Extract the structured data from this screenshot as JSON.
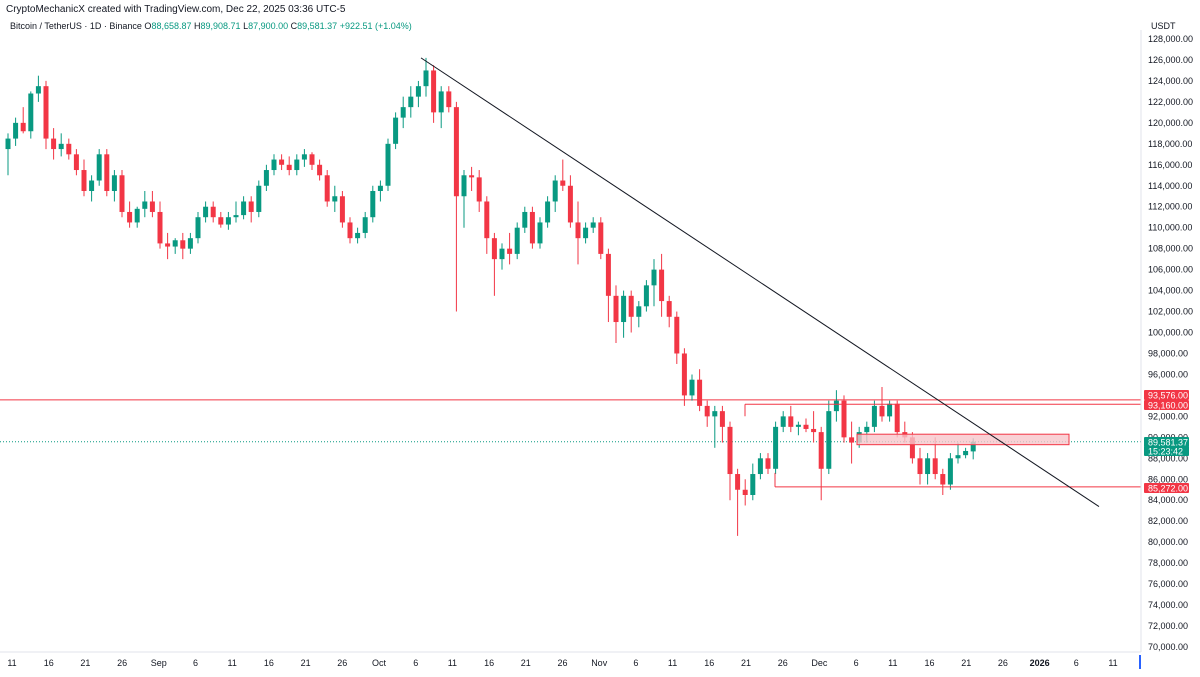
{
  "header": {
    "attribution": "CryptoMechanicX created with TradingView.com, Dec 22, 2025 03:36 UTC-5"
  },
  "symbol": {
    "name": "Bitcoin / TetherUS · 1D · Binance",
    "open_label": "O",
    "open": "88,658.87",
    "high_label": "H",
    "high": "89,908.71",
    "low_label": "L",
    "low": "87,900.00",
    "close_label": "C",
    "close": "89,581.37",
    "change": "+922.51 (+1.04%)"
  },
  "currency": "USDT",
  "colors": {
    "up": "#089981",
    "down": "#f23645",
    "trendline": "#131722",
    "zone_fill": "#f7c6cb",
    "current_price_line": "#089981"
  },
  "price_tags": [
    {
      "value": "93,576.00",
      "price": 93576,
      "color": "#f23645"
    },
    {
      "value": "93,160.00",
      "price": 93160,
      "color": "#f23645"
    },
    {
      "value": "89,581.37",
      "price": 89581.37,
      "color": "#089981"
    },
    {
      "value": "15:23:42",
      "price": 88400,
      "color": "#089981"
    },
    {
      "value": "85,272.00",
      "price": 85272,
      "color": "#f23645"
    }
  ],
  "chart_data": {
    "type": "candlestick",
    "y_axis": {
      "ticks": [
        "128,000.00",
        "126,000.00",
        "124,000.00",
        "122,000.00",
        "120,000.00",
        "118,000.00",
        "116,000.00",
        "114,000.00",
        "112,000.00",
        "110,000.00",
        "108,000.00",
        "106,000.00",
        "104,000.00",
        "102,000.00",
        "100,000.00",
        "98,000.00",
        "96,000.00",
        "94,000.00",
        "92,000.00",
        "90,000.00",
        "88,000.00",
        "86,000.00",
        "84,000.00",
        "82,000.00",
        "80,000.00",
        "78,000.00",
        "76,000.00",
        "74,000.00",
        "72,000.00",
        "70,000.00"
      ],
      "range": [
        69000,
        129000
      ]
    },
    "x_axis": {
      "ticks": [
        "11",
        "16",
        "21",
        "26",
        "Sep",
        "6",
        "11",
        "16",
        "21",
        "26",
        "Oct",
        "6",
        "11",
        "16",
        "21",
        "26",
        "Nov",
        "6",
        "11",
        "16",
        "21",
        "26",
        "Dec",
        "6",
        "11",
        "16",
        "21",
        "26",
        "2026",
        "6",
        "11"
      ],
      "bold_tick": "2026"
    },
    "candles": [
      {
        "o": 117500,
        "h": 119000,
        "l": 115000,
        "c": 118500
      },
      {
        "o": 118500,
        "h": 120500,
        "l": 117800,
        "c": 120000
      },
      {
        "o": 120000,
        "h": 121500,
        "l": 119000,
        "c": 119200
      },
      {
        "o": 119200,
        "h": 123000,
        "l": 118500,
        "c": 122800
      },
      {
        "o": 122800,
        "h": 124500,
        "l": 122000,
        "c": 123500
      },
      {
        "o": 123500,
        "h": 124000,
        "l": 117500,
        "c": 118500
      },
      {
        "o": 118500,
        "h": 119500,
        "l": 116500,
        "c": 117500
      },
      {
        "o": 117500,
        "h": 119000,
        "l": 116800,
        "c": 118000
      },
      {
        "o": 118000,
        "h": 118500,
        "l": 116500,
        "c": 117000
      },
      {
        "o": 117000,
        "h": 117500,
        "l": 115000,
        "c": 115500
      },
      {
        "o": 115500,
        "h": 116500,
        "l": 113000,
        "c": 113500
      },
      {
        "o": 113500,
        "h": 115000,
        "l": 112500,
        "c": 114500
      },
      {
        "o": 114500,
        "h": 117500,
        "l": 114000,
        "c": 117000
      },
      {
        "o": 117000,
        "h": 117500,
        "l": 113000,
        "c": 113500
      },
      {
        "o": 113500,
        "h": 115500,
        "l": 112500,
        "c": 115000
      },
      {
        "o": 115000,
        "h": 115500,
        "l": 111000,
        "c": 111500
      },
      {
        "o": 111500,
        "h": 112500,
        "l": 110000,
        "c": 110500
      },
      {
        "o": 110500,
        "h": 112000,
        "l": 110000,
        "c": 111800
      },
      {
        "o": 111800,
        "h": 113500,
        "l": 111000,
        "c": 112500
      },
      {
        "o": 112500,
        "h": 113500,
        "l": 111000,
        "c": 111500
      },
      {
        "o": 111500,
        "h": 112500,
        "l": 108000,
        "c": 108500
      },
      {
        "o": 108500,
        "h": 109500,
        "l": 107000,
        "c": 108200
      },
      {
        "o": 108200,
        "h": 109000,
        "l": 107500,
        "c": 108800
      },
      {
        "o": 108800,
        "h": 109500,
        "l": 107000,
        "c": 108000
      },
      {
        "o": 108000,
        "h": 109500,
        "l": 107500,
        "c": 109000
      },
      {
        "o": 109000,
        "h": 111500,
        "l": 108500,
        "c": 111000
      },
      {
        "o": 111000,
        "h": 112500,
        "l": 110500,
        "c": 112000
      },
      {
        "o": 112000,
        "h": 112500,
        "l": 110500,
        "c": 111000
      },
      {
        "o": 111000,
        "h": 111500,
        "l": 110000,
        "c": 110300
      },
      {
        "o": 110300,
        "h": 111500,
        "l": 109800,
        "c": 111000
      },
      {
        "o": 111000,
        "h": 112500,
        "l": 110500,
        "c": 111200
      },
      {
        "o": 111200,
        "h": 113000,
        "l": 110800,
        "c": 112500
      },
      {
        "o": 112500,
        "h": 113000,
        "l": 110500,
        "c": 111500
      },
      {
        "o": 111500,
        "h": 114500,
        "l": 111000,
        "c": 114000
      },
      {
        "o": 114000,
        "h": 116000,
        "l": 113500,
        "c": 115500
      },
      {
        "o": 115500,
        "h": 117000,
        "l": 115000,
        "c": 116500
      },
      {
        "o": 116500,
        "h": 117000,
        "l": 115500,
        "c": 116000
      },
      {
        "o": 116000,
        "h": 116800,
        "l": 115000,
        "c": 115500
      },
      {
        "o": 115500,
        "h": 117000,
        "l": 115000,
        "c": 116500
      },
      {
        "o": 116500,
        "h": 117500,
        "l": 115800,
        "c": 117000
      },
      {
        "o": 117000,
        "h": 117200,
        "l": 115500,
        "c": 116000
      },
      {
        "o": 116000,
        "h": 116500,
        "l": 114500,
        "c": 115000
      },
      {
        "o": 115000,
        "h": 115500,
        "l": 112000,
        "c": 112500
      },
      {
        "o": 112500,
        "h": 114000,
        "l": 111500,
        "c": 113000
      },
      {
        "o": 113000,
        "h": 113500,
        "l": 110000,
        "c": 110500
      },
      {
        "o": 110500,
        "h": 111000,
        "l": 108500,
        "c": 109000
      },
      {
        "o": 109000,
        "h": 110000,
        "l": 108500,
        "c": 109500
      },
      {
        "o": 109500,
        "h": 111500,
        "l": 109000,
        "c": 111000
      },
      {
        "o": 111000,
        "h": 114000,
        "l": 110500,
        "c": 113500
      },
      {
        "o": 113500,
        "h": 114500,
        "l": 112500,
        "c": 114000
      },
      {
        "o": 114000,
        "h": 118500,
        "l": 113500,
        "c": 118000
      },
      {
        "o": 118000,
        "h": 121000,
        "l": 117500,
        "c": 120500
      },
      {
        "o": 120500,
        "h": 122500,
        "l": 119500,
        "c": 121500
      },
      {
        "o": 121500,
        "h": 123500,
        "l": 120500,
        "c": 122500
      },
      {
        "o": 122500,
        "h": 124000,
        "l": 121500,
        "c": 123500
      },
      {
        "o": 123500,
        "h": 126200,
        "l": 122500,
        "c": 125000
      },
      {
        "o": 125000,
        "h": 125500,
        "l": 120000,
        "c": 121000
      },
      {
        "o": 121000,
        "h": 123500,
        "l": 119500,
        "c": 123000
      },
      {
        "o": 123000,
        "h": 123500,
        "l": 121000,
        "c": 121500
      },
      {
        "o": 121500,
        "h": 122000,
        "l": 102000,
        "c": 113000
      },
      {
        "o": 113000,
        "h": 115500,
        "l": 110000,
        "c": 115000
      },
      {
        "o": 115000,
        "h": 115800,
        "l": 113500,
        "c": 114800
      },
      {
        "o": 114800,
        "h": 115500,
        "l": 111500,
        "c": 112500
      },
      {
        "o": 112500,
        "h": 113000,
        "l": 107500,
        "c": 109000
      },
      {
        "o": 109000,
        "h": 109500,
        "l": 103500,
        "c": 107000
      },
      {
        "o": 107000,
        "h": 108500,
        "l": 106000,
        "c": 108000
      },
      {
        "o": 108000,
        "h": 109500,
        "l": 106500,
        "c": 107500
      },
      {
        "o": 107500,
        "h": 110500,
        "l": 107000,
        "c": 110000
      },
      {
        "o": 110000,
        "h": 112000,
        "l": 109500,
        "c": 111500
      },
      {
        "o": 111500,
        "h": 112000,
        "l": 108000,
        "c": 108500
      },
      {
        "o": 108500,
        "h": 111000,
        "l": 108000,
        "c": 110500
      },
      {
        "o": 110500,
        "h": 113000,
        "l": 110000,
        "c": 112500
      },
      {
        "o": 112500,
        "h": 115000,
        "l": 111500,
        "c": 114500
      },
      {
        "o": 114500,
        "h": 116500,
        "l": 113500,
        "c": 114000
      },
      {
        "o": 114000,
        "h": 115000,
        "l": 110000,
        "c": 110500
      },
      {
        "o": 110500,
        "h": 112500,
        "l": 106500,
        "c": 109000
      },
      {
        "o": 109000,
        "h": 110500,
        "l": 108500,
        "c": 110000
      },
      {
        "o": 110000,
        "h": 111000,
        "l": 109500,
        "c": 110500
      },
      {
        "o": 110500,
        "h": 111000,
        "l": 107000,
        "c": 107500
      },
      {
        "o": 107500,
        "h": 108000,
        "l": 101000,
        "c": 103500
      },
      {
        "o": 103500,
        "h": 104500,
        "l": 99000,
        "c": 101000
      },
      {
        "o": 101000,
        "h": 104000,
        "l": 99500,
        "c": 103500
      },
      {
        "o": 103500,
        "h": 104000,
        "l": 100000,
        "c": 101500
      },
      {
        "o": 101500,
        "h": 103000,
        "l": 100500,
        "c": 102500
      },
      {
        "o": 102500,
        "h": 105000,
        "l": 102000,
        "c": 104500
      },
      {
        "o": 104500,
        "h": 107000,
        "l": 102500,
        "c": 106000
      },
      {
        "o": 106000,
        "h": 107500,
        "l": 101500,
        "c": 103000
      },
      {
        "o": 103000,
        "h": 103500,
        "l": 100500,
        "c": 101500
      },
      {
        "o": 101500,
        "h": 102000,
        "l": 97000,
        "c": 98000
      },
      {
        "o": 98000,
        "h": 98500,
        "l": 93000,
        "c": 94000
      },
      {
        "o": 94000,
        "h": 96000,
        "l": 93500,
        "c": 95500
      },
      {
        "o": 95500,
        "h": 96500,
        "l": 92500,
        "c": 93000
      },
      {
        "o": 93000,
        "h": 93500,
        "l": 91000,
        "c": 92000
      },
      {
        "o": 92000,
        "h": 93000,
        "l": 89000,
        "c": 92500
      },
      {
        "o": 92500,
        "h": 93000,
        "l": 89500,
        "c": 91000
      },
      {
        "o": 91000,
        "h": 91500,
        "l": 84000,
        "c": 86500
      },
      {
        "o": 86500,
        "h": 87000,
        "l": 80600,
        "c": 85000
      },
      {
        "o": 85000,
        "h": 86000,
        "l": 83500,
        "c": 84500
      },
      {
        "o": 84500,
        "h": 87500,
        "l": 84000,
        "c": 86500
      },
      {
        "o": 86500,
        "h": 88500,
        "l": 86000,
        "c": 88000
      },
      {
        "o": 88000,
        "h": 88500,
        "l": 86500,
        "c": 87000
      },
      {
        "o": 87000,
        "h": 91500,
        "l": 86500,
        "c": 91000
      },
      {
        "o": 91000,
        "h": 92500,
        "l": 90500,
        "c": 92000
      },
      {
        "o": 92000,
        "h": 93000,
        "l": 90500,
        "c": 91000
      },
      {
        "o": 91000,
        "h": 91500,
        "l": 90200,
        "c": 91200
      },
      {
        "o": 91200,
        "h": 91800,
        "l": 90500,
        "c": 90800
      },
      {
        "o": 90800,
        "h": 92500,
        "l": 89500,
        "c": 90500
      },
      {
        "o": 90500,
        "h": 91000,
        "l": 84000,
        "c": 87000
      },
      {
        "o": 87000,
        "h": 93500,
        "l": 86500,
        "c": 92500
      },
      {
        "o": 92500,
        "h": 94500,
        "l": 91500,
        "c": 93500
      },
      {
        "o": 93500,
        "h": 94000,
        "l": 89500,
        "c": 90000
      },
      {
        "o": 90000,
        "h": 91500,
        "l": 87500,
        "c": 89500
      },
      {
        "o": 89500,
        "h": 91000,
        "l": 89000,
        "c": 90500
      },
      {
        "o": 90500,
        "h": 91500,
        "l": 89500,
        "c": 91000
      },
      {
        "o": 91000,
        "h": 93500,
        "l": 90500,
        "c": 93000
      },
      {
        "o": 93000,
        "h": 94800,
        "l": 91500,
        "c": 92000
      },
      {
        "o": 92000,
        "h": 93500,
        "l": 91500,
        "c": 93200
      },
      {
        "o": 93200,
        "h": 93500,
        "l": 90000,
        "c": 90500
      },
      {
        "o": 90500,
        "h": 91500,
        "l": 89500,
        "c": 90000
      },
      {
        "o": 90000,
        "h": 90500,
        "l": 87500,
        "c": 88000
      },
      {
        "o": 88000,
        "h": 89000,
        "l": 85500,
        "c": 86500
      },
      {
        "o": 86500,
        "h": 88500,
        "l": 85500,
        "c": 88000
      },
      {
        "o": 88000,
        "h": 90000,
        "l": 86000,
        "c": 86500
      },
      {
        "o": 86500,
        "h": 87000,
        "l": 84500,
        "c": 85500
      },
      {
        "o": 85500,
        "h": 88500,
        "l": 85000,
        "c": 88000
      },
      {
        "o": 88000,
        "h": 89500,
        "l": 87500,
        "c": 88300
      },
      {
        "o": 88300,
        "h": 89000,
        "l": 88000,
        "c": 88700
      },
      {
        "o": 88658.87,
        "h": 89908.71,
        "l": 87900,
        "c": 89581.37
      }
    ],
    "levels": [
      {
        "price": 93576,
        "label": "93,576.00"
      },
      {
        "price": 85272,
        "label": "85,272.00"
      }
    ],
    "annotations": [
      {
        "type": "trendline",
        "from_price": 126200,
        "to_price": 83400
      },
      {
        "type": "range_box",
        "top": 93160,
        "bottom": 85272
      },
      {
        "type": "zone",
        "top": 90300,
        "bottom": 89300
      }
    ]
  }
}
